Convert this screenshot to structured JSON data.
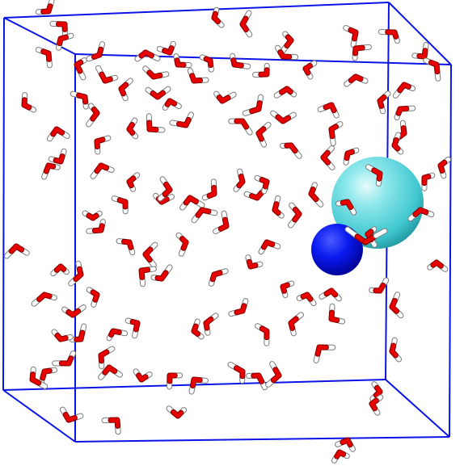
{
  "scene": {
    "background": "#ffffff",
    "box_color": "#0a14e6",
    "oxygen_color": "#e60000",
    "hydrogen_color": "#ffffff",
    "hydrogen_shade": "#7a7a7a",
    "cation_color": "#55dde3",
    "anion_color": "#0000e6",
    "water_molecule_count": 128,
    "ion_count": 2
  }
}
